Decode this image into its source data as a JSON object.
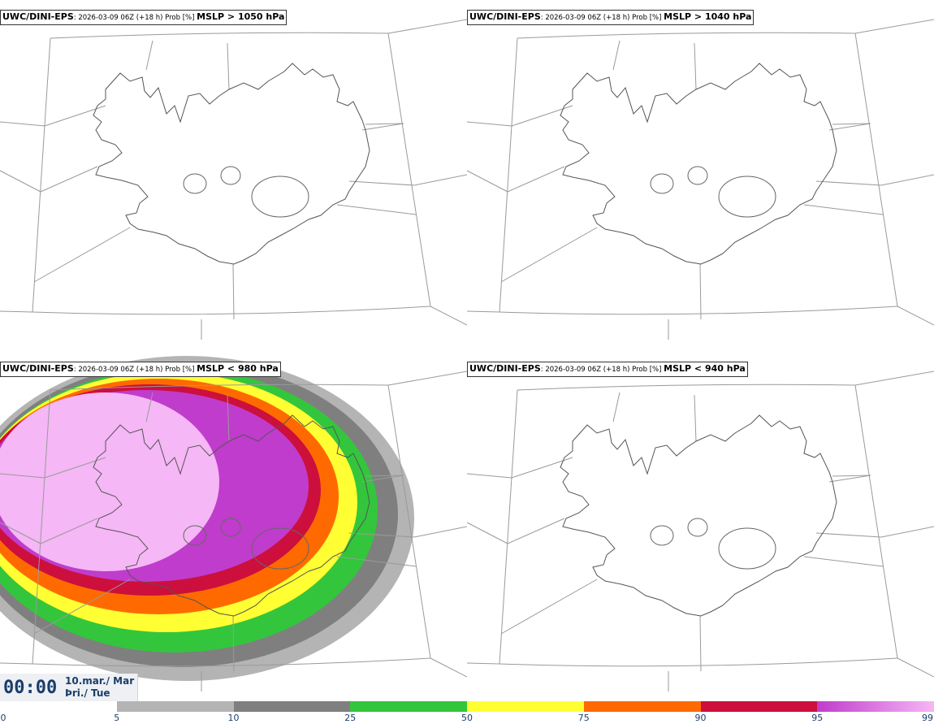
{
  "panels": [
    {
      "model": "UWC/DINI-EPS",
      "meta": ": 2026-03-09 06Z (+18 h) Prob [%] ",
      "field": "MSLP > 1050 hPa",
      "filled": false
    },
    {
      "model": "UWC/DINI-EPS",
      "meta": ": 2026-03-09 06Z (+18 h) Prob [%] ",
      "field": "MSLP > 1040 hPa",
      "filled": false
    },
    {
      "model": "UWC/DINI-EPS",
      "meta": ": 2026-03-09 06Z (+18 h) Prob [%] ",
      "field": "MSLP < 980 hPa",
      "filled": true
    },
    {
      "model": "UWC/DINI-EPS",
      "meta": ": 2026-03-09 06Z (+18 h) Prob [%] ",
      "field": "MSLP < 940 hPa",
      "filled": false
    }
  ],
  "colorbar": {
    "ticks": [
      "0",
      "5",
      "10",
      "25",
      "50",
      "75",
      "90",
      "95",
      "99"
    ],
    "colors": [
      "#ffffff",
      "#b4b4b4",
      "#7f7f7f",
      "#33c63c",
      "#ffff33",
      "#ff6a00",
      "#cc0f3c",
      "#c03ccc",
      "#f5b7f5"
    ]
  },
  "valid_time": {
    "time": "00:00",
    "date_line1": "10.mar./ Mar",
    "date_line2": "Þri./ Tue"
  }
}
